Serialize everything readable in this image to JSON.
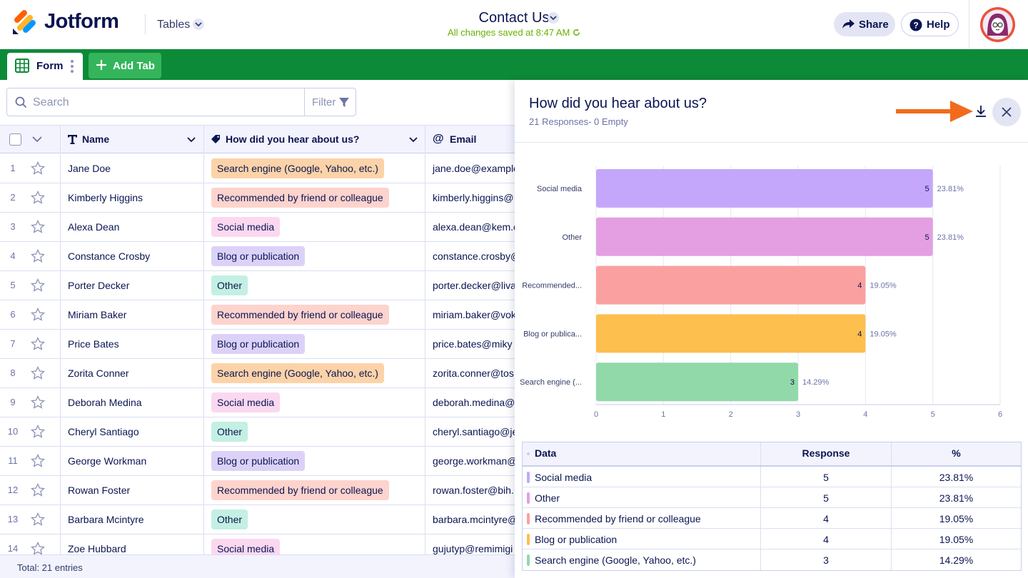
{
  "header": {
    "brand": "Jotform",
    "tables_label": "Tables",
    "doc_title": "Contact Us",
    "saved_status": "All changes saved at 8:47 AM",
    "share_label": "Share",
    "help_label": "Help"
  },
  "tabs": {
    "form_label": "Form",
    "add_label": "Add Tab"
  },
  "toolbar": {
    "search_placeholder": "Search",
    "filter_label": "Filter"
  },
  "table": {
    "columns": {
      "name": "Name",
      "how": "How did you hear about us?",
      "email": "Email"
    },
    "rows": [
      {
        "num": "1",
        "name": "Jane Doe",
        "how": "Search engine (Google, Yahoo, etc.)",
        "email": "jane.doe@example"
      },
      {
        "num": "2",
        "name": "Kimberly Higgins",
        "how": "Recommended by friend or colleague",
        "email": "kimberly.higgins@"
      },
      {
        "num": "3",
        "name": "Alexa Dean",
        "how": "Social media",
        "email": "alexa.dean@kem.c"
      },
      {
        "num": "4",
        "name": "Constance Crosby",
        "how": "Blog or publication",
        "email": "constance.crosby@"
      },
      {
        "num": "5",
        "name": "Porter Decker",
        "how": "Other",
        "email": "porter.decker@liva"
      },
      {
        "num": "6",
        "name": "Miriam Baker",
        "how": "Recommended by friend or colleague",
        "email": "miriam.baker@vok"
      },
      {
        "num": "7",
        "name": "Price Bates",
        "how": "Blog or publication",
        "email": "price.bates@miky"
      },
      {
        "num": "8",
        "name": "Zorita Conner",
        "how": "Search engine (Google, Yahoo, etc.)",
        "email": "zorita.conner@tos"
      },
      {
        "num": "9",
        "name": "Deborah Medina",
        "how": "Social media",
        "email": "deborah.medina@"
      },
      {
        "num": "10",
        "name": "Cheryl Santiago",
        "how": "Other",
        "email": "cheryl.santiago@je"
      },
      {
        "num": "11",
        "name": "George Workman",
        "how": "Blog or publication",
        "email": "george.workman@"
      },
      {
        "num": "12",
        "name": "Rowan Foster",
        "how": "Recommended by friend or colleague",
        "email": "rowan.foster@bih."
      },
      {
        "num": "13",
        "name": "Barbara Mcintyre",
        "how": "Other",
        "email": "barbara.mcintyre@"
      },
      {
        "num": "14",
        "name": "Zoe Hubbard",
        "how": "Social media",
        "email": "gujutyp@remimigi"
      }
    ],
    "footer": "Total: 21 entries"
  },
  "tag_colors": {
    "Search engine (Google, Yahoo, etc.)": "#fcd3a8",
    "Recommended by friend or colleague": "#fdd3cd",
    "Social media": "#fbd8f0",
    "Blog or publication": "#dcd2f8",
    "Other": "#c3f0e3"
  },
  "panel": {
    "title": "How did you hear about us?",
    "subtitle": "21 Responses- 0 Empty",
    "table_headers": {
      "data": "Data",
      "response": "Response",
      "percent": "%"
    },
    "table_rows": [
      {
        "label": "Social media",
        "response": "5",
        "percent": "23.81%",
        "color": "#c4a7fb"
      },
      {
        "label": "Other",
        "response": "5",
        "percent": "23.81%",
        "color": "#e39fe2"
      },
      {
        "label": "Recommended by friend or colleague",
        "response": "4",
        "percent": "19.05%",
        "color": "#fba0a0"
      },
      {
        "label": "Blog or publication",
        "response": "4",
        "percent": "19.05%",
        "color": "#fdbf4e"
      },
      {
        "label": "Search engine (Google, Yahoo, etc.)",
        "response": "3",
        "percent": "14.29%",
        "color": "#92d9a9"
      }
    ]
  },
  "chart_data": {
    "type": "bar",
    "orientation": "horizontal",
    "categories": [
      "Social media",
      "Other",
      "Recommended...",
      "Blog or publica...",
      "Search engine (..."
    ],
    "values": [
      5,
      5,
      4,
      4,
      3
    ],
    "percent_labels": [
      "23.81%",
      "23.81%",
      "19.05%",
      "19.05%",
      "14.29%"
    ],
    "colors": [
      "#c4a7fb",
      "#e39fe2",
      "#fba0a0",
      "#fdbf4e",
      "#92d9a9"
    ],
    "xlim": [
      0,
      6
    ],
    "xticks": [
      "0",
      "1",
      "2",
      "3",
      "4",
      "5",
      "6"
    ],
    "grid": true
  }
}
